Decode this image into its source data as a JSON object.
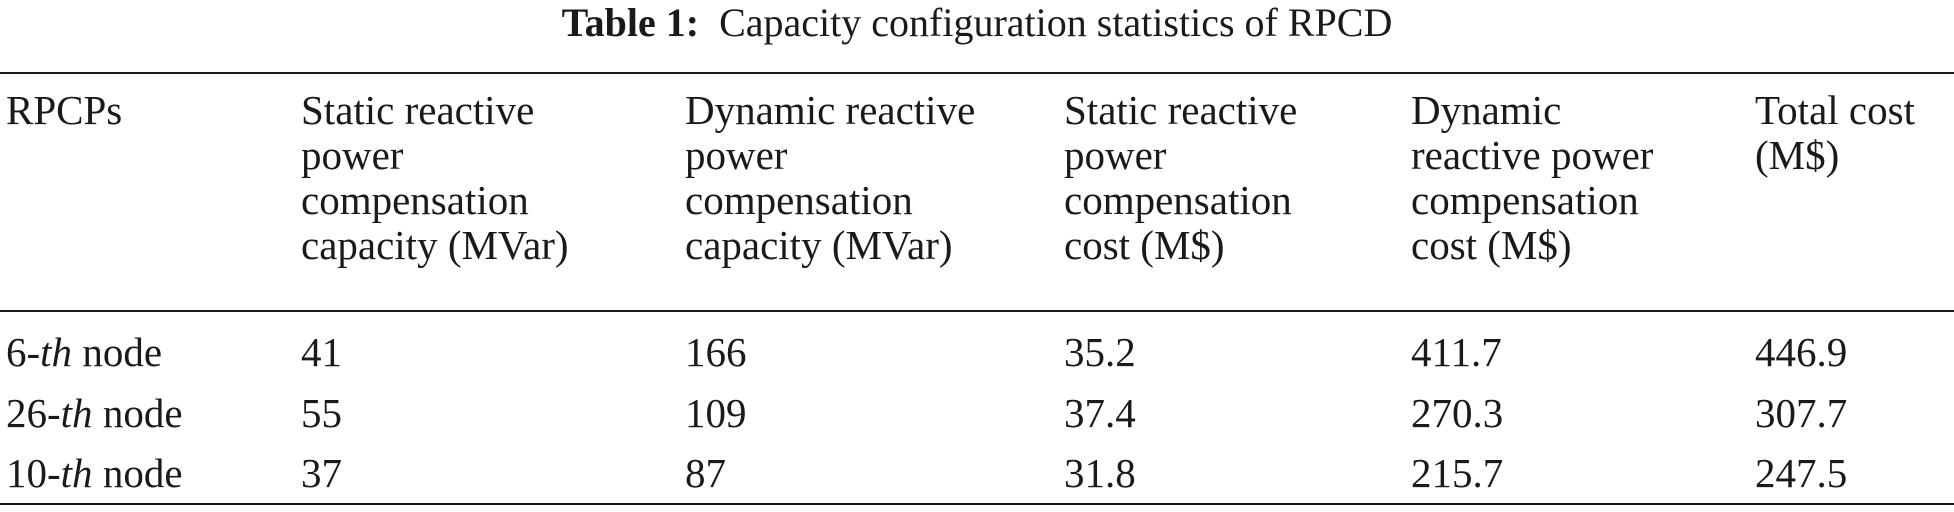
{
  "caption": {
    "label": "Table 1:",
    "text": "Capacity configuration statistics of RPCD"
  },
  "table": {
    "headers": [
      [
        "RPCPs"
      ],
      [
        "Static reactive",
        "power",
        "compensation",
        "capacity (MVar)"
      ],
      [
        "Dynamic reactive",
        "power",
        "compensation",
        "capacity (MVar)"
      ],
      [
        "Static reactive",
        "power",
        "compensation",
        "cost (M$)"
      ],
      [
        "Dynamic",
        "reactive power",
        "compensation",
        "cost (M$)"
      ],
      [
        "Total cost",
        "(M$)"
      ]
    ],
    "rows": [
      {
        "node": {
          "num": "6-",
          "suffix": "th",
          "word": " node"
        },
        "static_capacity": "41",
        "dynamic_capacity": "166",
        "static_cost": "35.2",
        "dynamic_cost": "411.7",
        "total_cost": "446.9"
      },
      {
        "node": {
          "num": "26-",
          "suffix": "th",
          "word": " node"
        },
        "static_capacity": "55",
        "dynamic_capacity": "109",
        "static_cost": "37.4",
        "dynamic_cost": "270.3",
        "total_cost": "307.7"
      },
      {
        "node": {
          "num": "10-",
          "suffix": "th",
          "word": " node"
        },
        "static_capacity": "37",
        "dynamic_capacity": "87",
        "static_cost": "31.8",
        "dynamic_cost": "215.7",
        "total_cost": "247.5"
      }
    ]
  }
}
